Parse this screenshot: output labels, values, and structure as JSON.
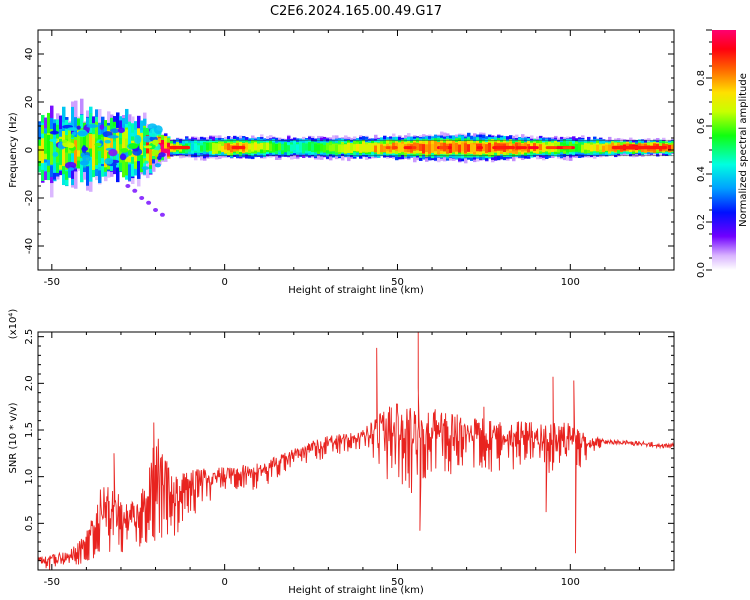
{
  "title": "C2E6.2024.165.00.49.G17",
  "chart_data": [
    {
      "type": "heatmap",
      "xlabel": "Height of straight line (km)",
      "ylabel": "Frequency (Hz)",
      "xlim": [
        -54,
        130
      ],
      "ylim": [
        -50,
        50
      ],
      "x_ticks": [
        "-50",
        "0",
        "50",
        "100"
      ],
      "y_ticks": [
        "-40",
        "-20",
        "0",
        "20",
        "40"
      ],
      "colorbar": {
        "label": "Normalized spectral amplitude",
        "range": [
          0,
          1
        ],
        "ticks": [
          "0.0",
          "0.2",
          "0.4",
          "0.6",
          "0.8"
        ]
      },
      "band_center_hz": 1,
      "band_profile": [
        {
          "x": -54,
          "width": 12,
          "peak": 0.45
        },
        {
          "x": -40,
          "width": 12,
          "peak": 0.5
        },
        {
          "x": -25,
          "width": 10,
          "peak": 0.45
        },
        {
          "x": -17,
          "width": 3,
          "peak": 0.95
        },
        {
          "x": -10,
          "width": 4,
          "peak": 0.45
        },
        {
          "x": 2,
          "width": 4,
          "peak": 0.9
        },
        {
          "x": 20,
          "width": 4,
          "peak": 0.5
        },
        {
          "x": 45,
          "width": 4,
          "peak": 0.85
        },
        {
          "x": 60,
          "width": 5,
          "peak": 0.9
        },
        {
          "x": 75,
          "width": 5,
          "peak": 0.9
        },
        {
          "x": 90,
          "width": 4,
          "peak": 0.85
        },
        {
          "x": 100,
          "width": 4,
          "peak": 0.6
        },
        {
          "x": 115,
          "width": 3,
          "peak": 0.95
        },
        {
          "x": 130,
          "width": 3,
          "peak": 0.9
        }
      ],
      "scatter_tail": [
        {
          "x": -28,
          "y": -15
        },
        {
          "x": -26,
          "y": -17
        },
        {
          "x": -24,
          "y": -20
        },
        {
          "x": -22,
          "y": -22
        },
        {
          "x": -20,
          "y": -25
        },
        {
          "x": -18,
          "y": -27
        }
      ]
    },
    {
      "type": "line",
      "xlabel": "Height of straight line (km)",
      "ylabel": "SNR (10 * v/v)",
      "y_multiplier": "(x10⁴)",
      "xlim": [
        -54,
        130
      ],
      "ylim": [
        0,
        2.55
      ],
      "x_ticks": [
        "-50",
        "0",
        "50",
        "100"
      ],
      "y_ticks": [
        "0.5",
        "1.0",
        "1.5",
        "2.0",
        "2.5"
      ],
      "color": "#e8231f",
      "envelope": [
        {
          "x": -54,
          "lo": 0.0,
          "hi": 0.15
        },
        {
          "x": -45,
          "lo": 0.0,
          "hi": 0.2
        },
        {
          "x": -40,
          "lo": 0.05,
          "hi": 0.4
        },
        {
          "x": -35,
          "lo": 0.1,
          "hi": 1.0
        },
        {
          "x": -30,
          "lo": 0.1,
          "hi": 0.8
        },
        {
          "x": -25,
          "lo": 0.2,
          "hi": 0.7
        },
        {
          "x": -20,
          "lo": 0.3,
          "hi": 1.5
        },
        {
          "x": -15,
          "lo": 0.35,
          "hi": 1.0
        },
        {
          "x": -10,
          "lo": 0.5,
          "hi": 1.1
        },
        {
          "x": 0,
          "lo": 0.85,
          "hi": 1.1
        },
        {
          "x": 10,
          "lo": 0.85,
          "hi": 1.15
        },
        {
          "x": 20,
          "lo": 1.1,
          "hi": 1.3
        },
        {
          "x": 30,
          "lo": 1.2,
          "hi": 1.45
        },
        {
          "x": 40,
          "lo": 1.3,
          "hi": 1.5
        },
        {
          "x": 45,
          "lo": 1.0,
          "hi": 1.7
        },
        {
          "x": 50,
          "lo": 0.9,
          "hi": 1.8
        },
        {
          "x": 55,
          "lo": 0.8,
          "hi": 1.75
        },
        {
          "x": 60,
          "lo": 1.0,
          "hi": 1.75
        },
        {
          "x": 70,
          "lo": 1.05,
          "hi": 1.65
        },
        {
          "x": 80,
          "lo": 1.05,
          "hi": 1.6
        },
        {
          "x": 90,
          "lo": 1.05,
          "hi": 1.6
        },
        {
          "x": 100,
          "lo": 1.0,
          "hi": 1.6
        },
        {
          "x": 106,
          "lo": 1.2,
          "hi": 1.45
        },
        {
          "x": 110,
          "lo": 1.35,
          "hi": 1.4
        },
        {
          "x": 130,
          "lo": 1.3,
          "hi": 1.36
        }
      ],
      "spikes": [
        {
          "x": -32,
          "y": 1.25
        },
        {
          "x": -20.5,
          "y": 1.58
        },
        {
          "x": 44,
          "y": 2.38
        },
        {
          "x": 56,
          "y": 2.55
        },
        {
          "x": 56.5,
          "y": 0.42
        },
        {
          "x": 50,
          "y": 1.7
        },
        {
          "x": 56,
          "y": 1.95
        },
        {
          "x": 95,
          "y": 2.07
        },
        {
          "x": 93,
          "y": 0.62
        },
        {
          "x": 101,
          "y": 2.03
        },
        {
          "x": 101.5,
          "y": 0.18
        },
        {
          "x": 75,
          "y": 1.75
        }
      ]
    }
  ]
}
